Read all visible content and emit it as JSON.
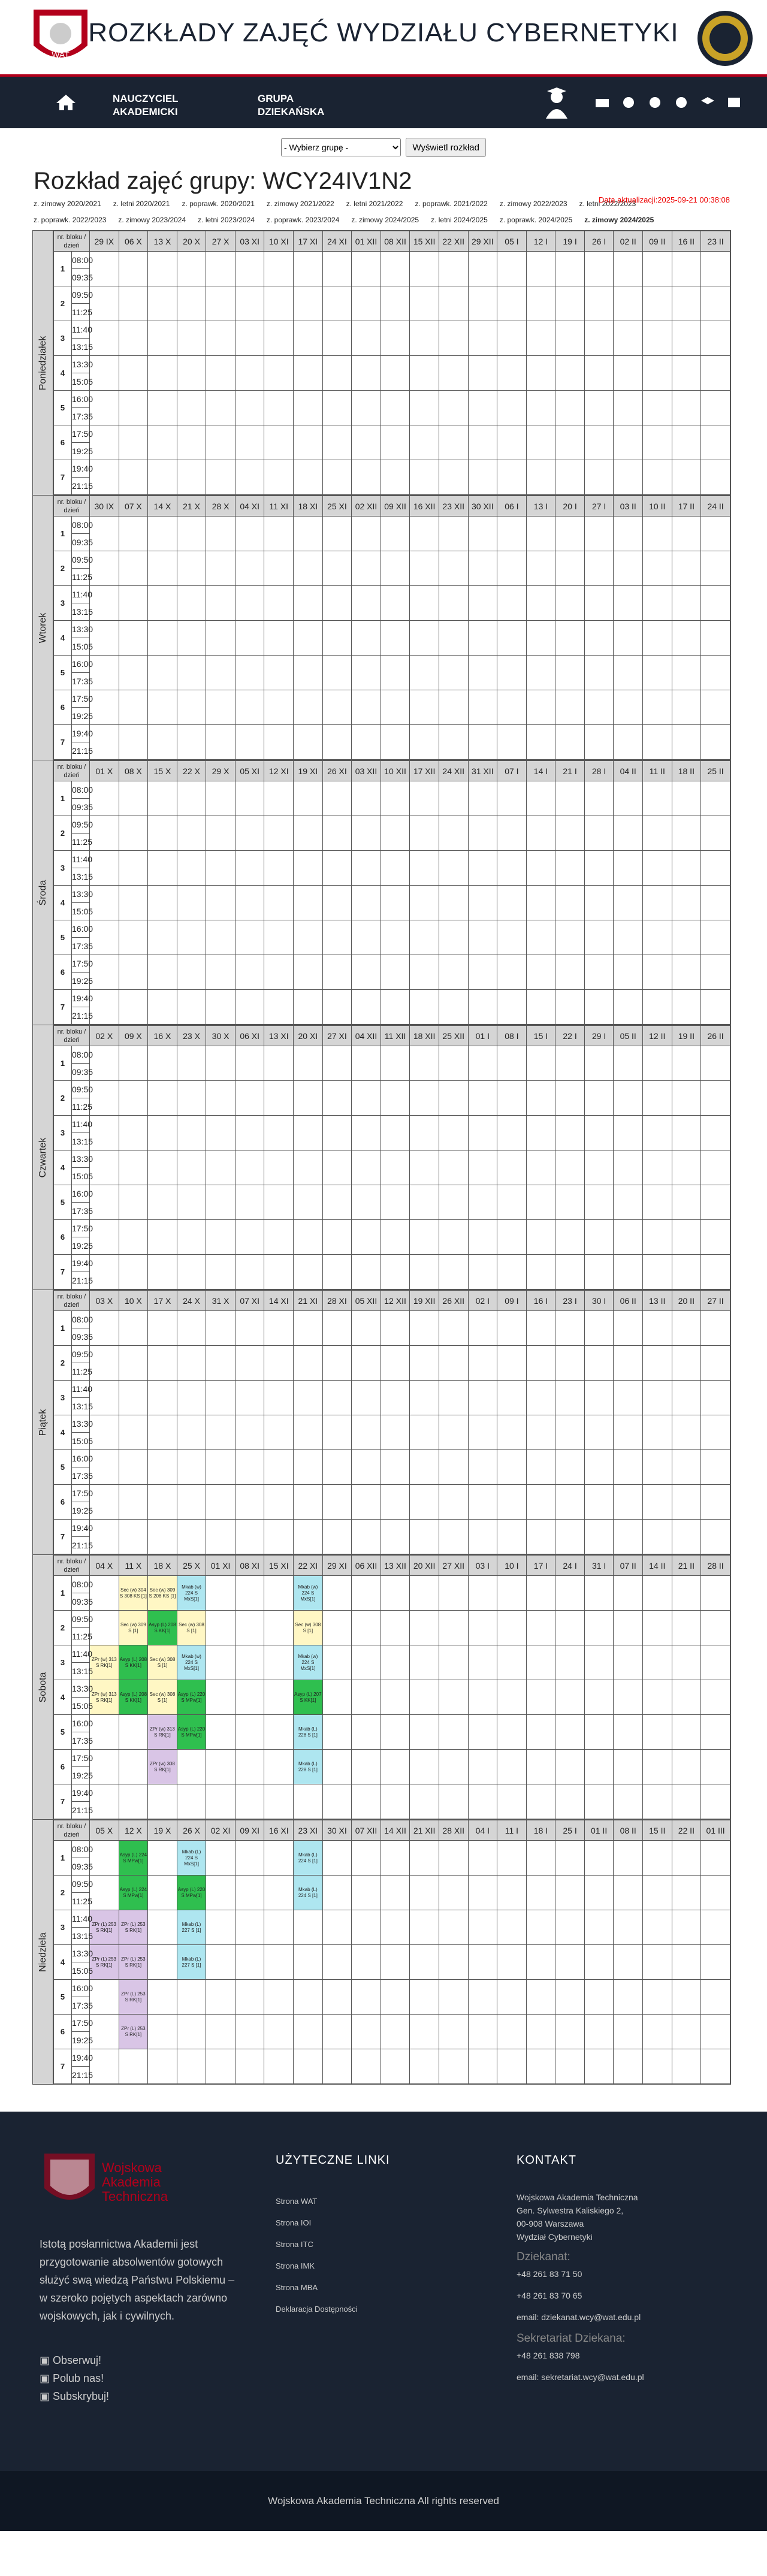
{
  "header": {
    "title": "ROZKŁADY ZAJĘĆ WYDZIAŁU CYBERNETYKI"
  },
  "nav": {
    "teachers": "NAUCZYCIEL AKADEMICKI",
    "group": "GRUPA DZIEKAŃSKA"
  },
  "select": {
    "placeholder": "- Wybierz grupę -",
    "button": "Wyświetl rozkład"
  },
  "page": {
    "title": "Rozkład zajęć grupy: WCY24IV1N2",
    "updated": "Data aktualizacji:2025-09-21 00:38:08"
  },
  "semesters": [
    "z. zimowy 2020/2021",
    "z. letni 2020/2021",
    "z. poprawk. 2020/2021",
    "z. zimowy 2021/2022",
    "z. letni 2021/2022",
    "z. poprawk. 2021/2022",
    "z. zimowy 2022/2023",
    "z. letni 2022/2023",
    "z. poprawk. 2022/2023",
    "z. zimowy 2023/2024",
    "z. letni 2023/2024",
    "z. poprawk. 2023/2024",
    "z. zimowy 2024/2025",
    "z. letni 2024/2025",
    "z. poprawk. 2024/2025",
    "z. zimowy 2024/2025"
  ],
  "blocks": [
    {
      "n": "1",
      "t1": "08:00",
      "t2": "09:35"
    },
    {
      "n": "2",
      "t1": "09:50",
      "t2": "11:25"
    },
    {
      "n": "3",
      "t1": "11:40",
      "t2": "13:15"
    },
    {
      "n": "4",
      "t1": "13:30",
      "t2": "15:05"
    },
    {
      "n": "5",
      "t1": "16:00",
      "t2": "17:35"
    },
    {
      "n": "6",
      "t1": "17:50",
      "t2": "19:25"
    },
    {
      "n": "7",
      "t1": "19:40",
      "t2": "21:15"
    }
  ],
  "corner_label": "nr. bloku / dzień",
  "days": [
    {
      "name": "Poniedziałek",
      "cols": [
        "29 IX",
        "06 X",
        "13 X",
        "20 X",
        "27 X",
        "03 XI",
        "10 XI",
        "17 XI",
        "24 XI",
        "01 XII",
        "08 XII",
        "15 XII",
        "22 XII",
        "29 XII",
        "05 I",
        "12 I",
        "19 I",
        "26 I",
        "02 II",
        "09 II",
        "16 II",
        "23 II"
      ]
    },
    {
      "name": "Wtorek",
      "cols": [
        "30 IX",
        "07 X",
        "14 X",
        "21 X",
        "28 X",
        "04 XI",
        "11 XI",
        "18 XI",
        "25 XI",
        "02 XII",
        "09 XII",
        "16 XII",
        "23 XII",
        "30 XII",
        "06 I",
        "13 I",
        "20 I",
        "27 I",
        "03 II",
        "10 II",
        "17 II",
        "24 II"
      ]
    },
    {
      "name": "Środa",
      "cols": [
        "01 X",
        "08 X",
        "15 X",
        "22 X",
        "29 X",
        "05 XI",
        "12 XI",
        "19 XI",
        "26 XI",
        "03 XII",
        "10 XII",
        "17 XII",
        "24 XII",
        "31 XII",
        "07 I",
        "14 I",
        "21 I",
        "28 I",
        "04 II",
        "11 II",
        "18 II",
        "25 II"
      ]
    },
    {
      "name": "Czwartek",
      "cols": [
        "02 X",
        "09 X",
        "16 X",
        "23 X",
        "30 X",
        "06 XI",
        "13 XI",
        "20 XI",
        "27 XI",
        "04 XII",
        "11 XII",
        "18 XII",
        "25 XII",
        "01 I",
        "08 I",
        "15 I",
        "22 I",
        "29 I",
        "05 II",
        "12 II",
        "19 II",
        "26 II"
      ]
    },
    {
      "name": "Piątek",
      "cols": [
        "03 X",
        "10 X",
        "17 X",
        "24 X",
        "31 X",
        "07 XI",
        "14 XI",
        "21 XI",
        "28 XI",
        "05 XII",
        "12 XII",
        "19 XII",
        "26 XII",
        "02 I",
        "09 I",
        "16 I",
        "23 I",
        "30 I",
        "06 II",
        "13 II",
        "20 II",
        "27 II"
      ]
    },
    {
      "name": "Sobota",
      "cols": [
        "04 X",
        "11 X",
        "18 X",
        "25 X",
        "01 XI",
        "08 XI",
        "15 XI",
        "22 XI",
        "29 XI",
        "06 XII",
        "13 XII",
        "20 XII",
        "27 XII",
        "03 I",
        "10 I",
        "17 I",
        "24 I",
        "31 I",
        "07 II",
        "14 II",
        "21 II",
        "28 II"
      ]
    },
    {
      "name": "Niedziela",
      "cols": [
        "05 X",
        "12 X",
        "19 X",
        "26 X",
        "02 XI",
        "09 XI",
        "16 XI",
        "23 XI",
        "30 XI",
        "07 XII",
        "14 XII",
        "21 XII",
        "28 XII",
        "04 I",
        "11 I",
        "18 I",
        "25 I",
        "01 II",
        "08 II",
        "15 II",
        "22 II",
        "01 III"
      ]
    }
  ],
  "lessons": [
    {
      "day": 5,
      "block": 0,
      "col": 1,
      "c": "y",
      "text": "Sec (w) 304 S 308 KS [1]"
    },
    {
      "day": 5,
      "block": 0,
      "col": 2,
      "c": "y",
      "text": "Sec (w) 309 S 208 KS [1]"
    },
    {
      "day": 5,
      "block": 0,
      "col": 3,
      "c": "b",
      "text": "Mkab (w) 224 S MxS[1]"
    },
    {
      "day": 5,
      "block": 0,
      "col": 7,
      "c": "b",
      "text": "Mkab (w) 224 S MxS[1]"
    },
    {
      "day": 5,
      "block": 1,
      "col": 1,
      "c": "y",
      "text": "Sec (w) 309 S [1]"
    },
    {
      "day": 5,
      "block": 1,
      "col": 2,
      "c": "g",
      "text": "Asyp (L) 208 S KK[1]"
    },
    {
      "day": 5,
      "block": 1,
      "col": 3,
      "c": "y",
      "text": "Sec (w) 308 S [1]"
    },
    {
      "day": 5,
      "block": 1,
      "col": 7,
      "c": "y",
      "text": "Sec (w) 308 S [1]"
    },
    {
      "day": 5,
      "block": 2,
      "col": 0,
      "c": "y",
      "text": "ZPr (w) 313 S RK[1]"
    },
    {
      "day": 5,
      "block": 2,
      "col": 1,
      "c": "g",
      "text": "Asyp (L) 208 S KK[1]"
    },
    {
      "day": 5,
      "block": 2,
      "col": 2,
      "c": "y",
      "text": "Sec (w) 308 S [1]"
    },
    {
      "day": 5,
      "block": 2,
      "col": 3,
      "c": "b",
      "text": "Mkab (w) 224 S MxS[1]"
    },
    {
      "day": 5,
      "block": 2,
      "col": 7,
      "c": "b",
      "text": "Mkab (w) 224 S MxS[1]"
    },
    {
      "day": 5,
      "block": 3,
      "col": 0,
      "c": "y",
      "text": "ZPr (w) 313 S RK[1]"
    },
    {
      "day": 5,
      "block": 3,
      "col": 1,
      "c": "g",
      "text": "Asyp (L) 208 S KK[1]"
    },
    {
      "day": 5,
      "block": 3,
      "col": 2,
      "c": "y",
      "text": "Sec (w) 308 S [1]"
    },
    {
      "day": 5,
      "block": 3,
      "col": 3,
      "c": "g",
      "text": "Asyp (L) 220 S MPw[1]"
    },
    {
      "day": 5,
      "block": 3,
      "col": 7,
      "c": "g",
      "text": "Asyp (L) 207 S KK[1]"
    },
    {
      "day": 5,
      "block": 4,
      "col": 3,
      "c": "g",
      "text": "Asyp (L) 220 S MPw[1]"
    },
    {
      "day": 5,
      "block": 4,
      "col": 2,
      "c": "p",
      "text": "ZPr (w) 313 S RK[1]"
    },
    {
      "day": 5,
      "block": 4,
      "col": 7,
      "c": "b",
      "text": "Mkab (L) 228 S [1]"
    },
    {
      "day": 5,
      "block": 5,
      "col": 2,
      "c": "p",
      "text": "ZPr (w) 308 S RK[1]"
    },
    {
      "day": 5,
      "block": 5,
      "col": 7,
      "c": "b",
      "text": "Mkab (L) 228 S [1]"
    },
    {
      "day": 6,
      "block": 0,
      "col": 1,
      "c": "g",
      "text": "Asyp (L) 224 S MPw[1]"
    },
    {
      "day": 6,
      "block": 0,
      "col": 3,
      "c": "b",
      "text": "Mkab (L) 224 S MxS[1]"
    },
    {
      "day": 6,
      "block": 0,
      "col": 7,
      "c": "b",
      "text": "Mkab (L) 224 S [1]"
    },
    {
      "day": 6,
      "block": 1,
      "col": 1,
      "c": "g",
      "text": "Asyp (L) 224 S MPw[1]"
    },
    {
      "day": 6,
      "block": 1,
      "col": 3,
      "c": "g",
      "text": "Asyp (L) 220 S MPw[1]"
    },
    {
      "day": 6,
      "block": 1,
      "col": 7,
      "c": "b",
      "text": "Mkab (L) 224 S [1]"
    },
    {
      "day": 6,
      "block": 2,
      "col": 0,
      "c": "p",
      "text": "ZPr (L) 253 S RK[1]"
    },
    {
      "day": 6,
      "block": 2,
      "col": 1,
      "c": "p",
      "text": "ZPr (L) 253 S RK[1]"
    },
    {
      "day": 6,
      "block": 2,
      "col": 3,
      "c": "b",
      "text": "Mkab (L) 227 S [1]"
    },
    {
      "day": 6,
      "block": 3,
      "col": 0,
      "c": "p",
      "text": "ZPr (L) 253 S RK[1]"
    },
    {
      "day": 6,
      "block": 3,
      "col": 1,
      "c": "p",
      "text": "ZPr (L) 253 S RK[1]"
    },
    {
      "day": 6,
      "block": 3,
      "col": 3,
      "c": "b",
      "text": "Mkab (L) 227 S [1]"
    },
    {
      "day": 6,
      "block": 4,
      "col": 1,
      "c": "p",
      "text": "ZPr (L) 253 S RK[1]"
    },
    {
      "day": 6,
      "block": 5,
      "col": 1,
      "c": "p",
      "text": "ZPr (L) 253 S RK[1]"
    }
  ],
  "footer": {
    "logo_text": "Wojskowa Akademia Techniczna",
    "desc": "Istotą posłannictwa Akademii jest przygotowanie absolwentów gotowych służyć swą wiedzą Państwu Polskiemu – w szeroko pojętych aspektach zarówno wojskowych, jak i cywilnych.",
    "social": [
      "Obserwuj!",
      "Polub nas!",
      "Subskrybuj!"
    ],
    "links_title": "UŻYTECZNE LINKI",
    "links": [
      "Strona WAT",
      "Strona IOI",
      "Strona ITC",
      "Strona IMK",
      "Strona MBA",
      "Deklaracja Dostępności"
    ],
    "contact_title": "KONTAKT",
    "address": [
      "Wojskowa Akademia Techniczna",
      "Gen. Sylwestra Kaliskiego 2,",
      "00-908 Warszawa",
      "Wydział Cybernetyki"
    ],
    "dean_title": "Dziekanat:",
    "dean": [
      "+48 261 83 71 50",
      "+48 261 83 70 65",
      "email: dziekanat.wcy@wat.edu.pl"
    ],
    "sec_title": "Sekretariat Dziekana:",
    "sec": [
      "+48 261 838 798",
      "email: sekretariat.wcy@wat.edu.pl"
    ],
    "copyright": "Wojskowa Akademia Techniczna All rights reserved"
  }
}
